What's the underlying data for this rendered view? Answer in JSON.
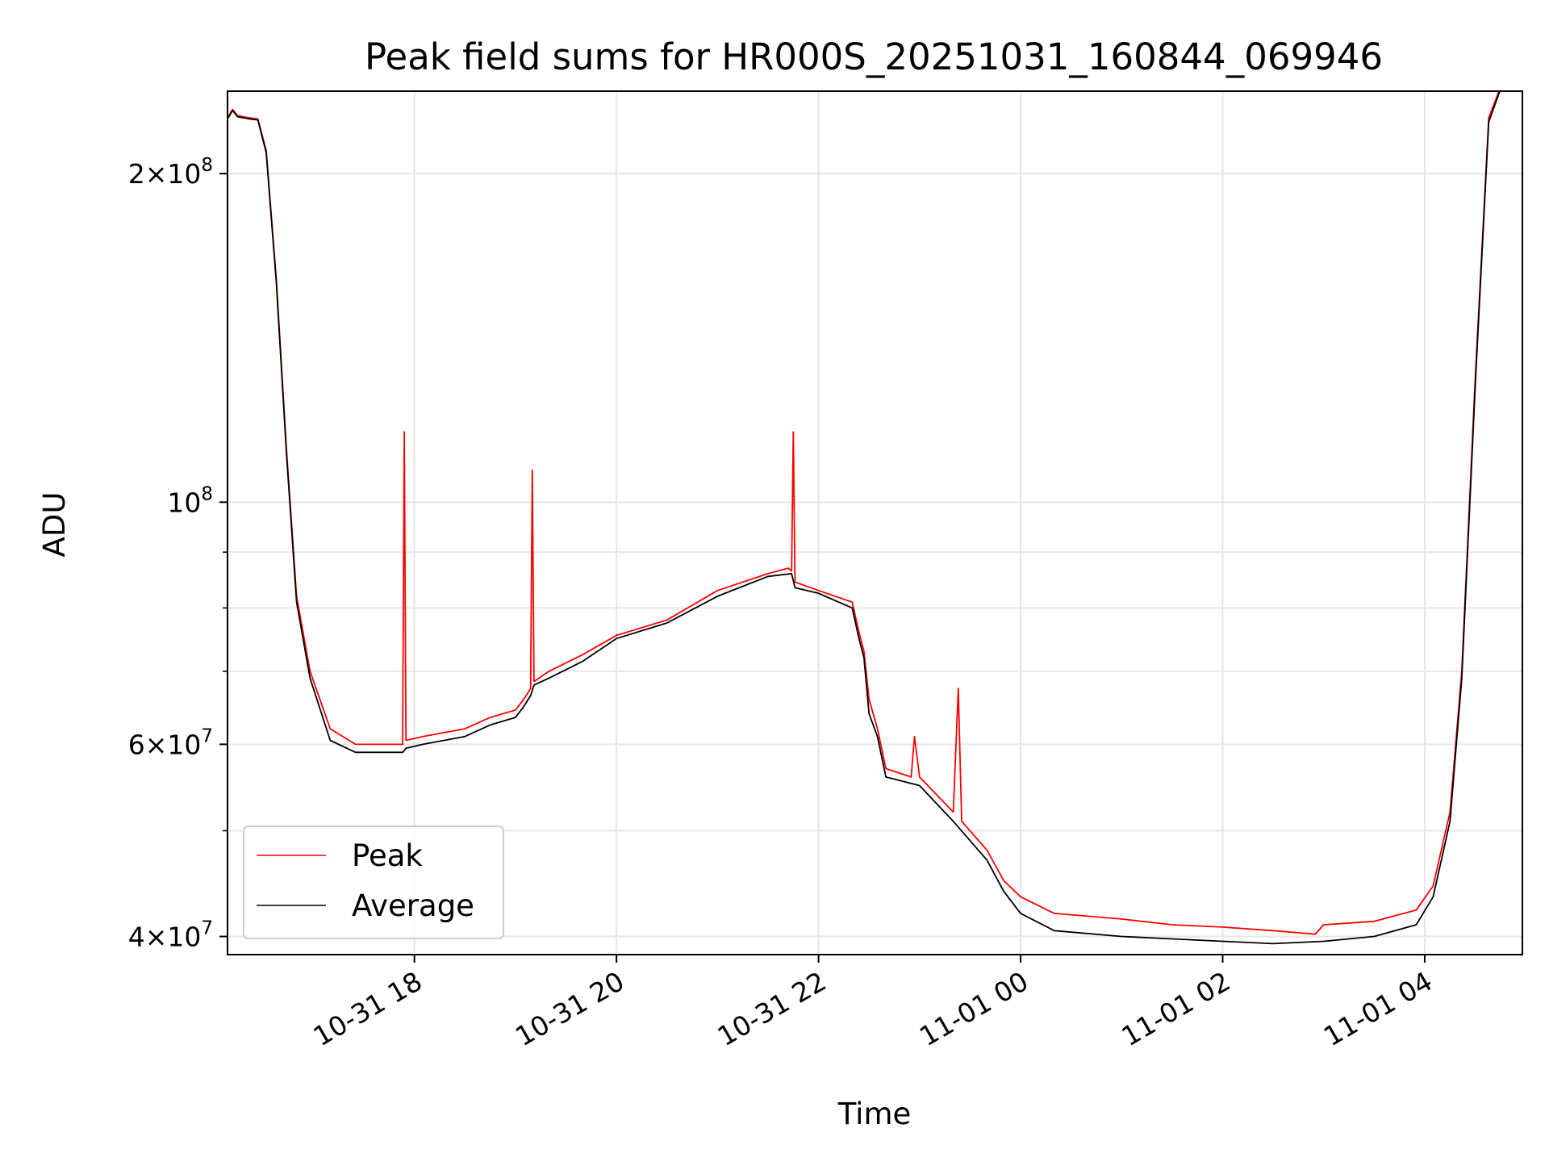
{
  "chart_data": {
    "type": "line",
    "title": "Peak field sums for HR000S_20251031_160844_069946",
    "xlabel": "Time",
    "ylabel": "ADU",
    "x_axis": {
      "type": "time",
      "range": [
        "2025-10-31 16:09",
        "2025-11-01 04:58"
      ],
      "ticks": [
        "10-31 18",
        "10-31 20",
        "10-31 22",
        "11-01 00",
        "11-01 02",
        "11-01 04"
      ],
      "tick_values": [
        "2025-10-31 18:00",
        "2025-10-31 20:00",
        "2025-10-31 22:00",
        "2025-11-01 00:00",
        "2025-11-01 02:00",
        "2025-11-01 04:00"
      ]
    },
    "y_axis": {
      "scale": "log",
      "range": [
        38500000,
        238000000
      ],
      "major_ticks": [
        {
          "value": 40000000,
          "mantissa": "4",
          "exponent": "7"
        },
        {
          "value": 60000000,
          "mantissa": "6",
          "exponent": "7"
        },
        {
          "value": 100000000,
          "mantissa": "",
          "exponent": "8"
        },
        {
          "value": 200000000,
          "mantissa": "2",
          "exponent": "8"
        }
      ],
      "minor_gridlines": [
        50000000,
        70000000,
        80000000,
        90000000
      ]
    },
    "grid": true,
    "legend": {
      "position": "lower-left",
      "entries": [
        {
          "name": "Peak",
          "color": "#ff0000"
        },
        {
          "name": "Average",
          "color": "#000000"
        }
      ]
    },
    "series": [
      {
        "name": "Peak",
        "color": "#ff0000",
        "points": [
          [
            "2025-10-31 16:09",
            225000000
          ],
          [
            "2025-10-31 16:12",
            229000000
          ],
          [
            "2025-10-31 16:15",
            226000000
          ],
          [
            "2025-10-31 16:22",
            225000000
          ],
          [
            "2025-10-31 16:27",
            224500000
          ],
          [
            "2025-10-31 16:32",
            210000000
          ],
          [
            "2025-10-31 16:38",
            160000000
          ],
          [
            "2025-10-31 16:44",
            112000000
          ],
          [
            "2025-10-31 16:50",
            82000000
          ],
          [
            "2025-10-31 16:58",
            70000000
          ],
          [
            "2025-10-31 17:10",
            62000000
          ],
          [
            "2025-10-31 17:25",
            60000000
          ],
          [
            "2025-10-31 17:53",
            60000000
          ],
          [
            "2025-10-31 17:54",
            116000000
          ],
          [
            "2025-10-31 17:55",
            60500000
          ],
          [
            "2025-10-31 18:05",
            61000000
          ],
          [
            "2025-10-31 18:30",
            62000000
          ],
          [
            "2025-10-31 18:45",
            63500000
          ],
          [
            "2025-10-31 19:00",
            64500000
          ],
          [
            "2025-10-31 19:05",
            66000000
          ],
          [
            "2025-10-31 19:09",
            67500000
          ],
          [
            "2025-10-31 19:10",
            107000000
          ],
          [
            "2025-10-31 19:11",
            68500000
          ],
          [
            "2025-10-31 19:20",
            70000000
          ],
          [
            "2025-10-31 19:40",
            72500000
          ],
          [
            "2025-10-31 20:00",
            75500000
          ],
          [
            "2025-10-31 20:30",
            78000000
          ],
          [
            "2025-10-31 21:00",
            83000000
          ],
          [
            "2025-10-31 21:30",
            86000000
          ],
          [
            "2025-10-31 21:42",
            87000000
          ],
          [
            "2025-10-31 21:44",
            86500000
          ],
          [
            "2025-10-31 21:45",
            116000000
          ],
          [
            "2025-10-31 21:46",
            84500000
          ],
          [
            "2025-10-31 22:00",
            83000000
          ],
          [
            "2025-10-31 22:20",
            81000000
          ],
          [
            "2025-10-31 22:24",
            76000000
          ],
          [
            "2025-10-31 22:27",
            73000000
          ],
          [
            "2025-10-31 22:30",
            66000000
          ],
          [
            "2025-10-31 22:35",
            62000000
          ],
          [
            "2025-10-31 22:40",
            57000000
          ],
          [
            "2025-10-31 22:55",
            56000000
          ],
          [
            "2025-10-31 22:57",
            61000000
          ],
          [
            "2025-10-31 23:00",
            56000000
          ],
          [
            "2025-10-31 23:20",
            52000000
          ],
          [
            "2025-10-31 23:23",
            67500000
          ],
          [
            "2025-10-31 23:25",
            51000000
          ],
          [
            "2025-10-31 23:40",
            48000000
          ],
          [
            "2025-10-31 23:50",
            45000000
          ],
          [
            "2025-11-01 00:00",
            43500000
          ],
          [
            "2025-11-01 00:20",
            42000000
          ],
          [
            "2025-11-01 01:00",
            41500000
          ],
          [
            "2025-11-01 01:30",
            41000000
          ],
          [
            "2025-11-01 02:00",
            40800000
          ],
          [
            "2025-11-01 02:30",
            40500000
          ],
          [
            "2025-11-01 02:55",
            40200000
          ],
          [
            "2025-11-01 03:00",
            41000000
          ],
          [
            "2025-11-01 03:30",
            41300000
          ],
          [
            "2025-11-01 03:55",
            42300000
          ],
          [
            "2025-11-01 04:05",
            44500000
          ],
          [
            "2025-11-01 04:15",
            52000000
          ],
          [
            "2025-11-01 04:22",
            70000000
          ],
          [
            "2025-11-01 04:30",
            130000000
          ],
          [
            "2025-11-01 04:38",
            225000000
          ],
          [
            "2025-11-01 04:45",
            240000000
          ]
        ]
      },
      {
        "name": "Average",
        "color": "#000000",
        "points": [
          [
            "2025-10-31 16:09",
            224500000
          ],
          [
            "2025-10-31 16:12",
            228500000
          ],
          [
            "2025-10-31 16:15",
            225500000
          ],
          [
            "2025-10-31 16:22",
            224500000
          ],
          [
            "2025-10-31 16:27",
            224000000
          ],
          [
            "2025-10-31 16:32",
            209000000
          ],
          [
            "2025-10-31 16:38",
            159000000
          ],
          [
            "2025-10-31 16:44",
            111000000
          ],
          [
            "2025-10-31 16:50",
            81000000
          ],
          [
            "2025-10-31 16:58",
            69000000
          ],
          [
            "2025-10-31 17:10",
            60500000
          ],
          [
            "2025-10-31 17:25",
            59000000
          ],
          [
            "2025-10-31 17:53",
            59000000
          ],
          [
            "2025-10-31 17:55",
            59500000
          ],
          [
            "2025-10-31 18:05",
            60000000
          ],
          [
            "2025-10-31 18:30",
            61000000
          ],
          [
            "2025-10-31 18:45",
            62500000
          ],
          [
            "2025-10-31 19:00",
            63500000
          ],
          [
            "2025-10-31 19:05",
            65000000
          ],
          [
            "2025-10-31 19:09",
            66500000
          ],
          [
            "2025-10-31 19:11",
            68000000
          ],
          [
            "2025-10-31 19:20",
            69000000
          ],
          [
            "2025-10-31 19:40",
            71500000
          ],
          [
            "2025-10-31 20:00",
            75000000
          ],
          [
            "2025-10-31 20:30",
            77500000
          ],
          [
            "2025-10-31 21:00",
            82000000
          ],
          [
            "2025-10-31 21:30",
            85500000
          ],
          [
            "2025-10-31 21:44",
            86000000
          ],
          [
            "2025-10-31 21:46",
            83500000
          ],
          [
            "2025-10-31 22:00",
            82500000
          ],
          [
            "2025-10-31 22:20",
            80000000
          ],
          [
            "2025-10-31 22:24",
            75000000
          ],
          [
            "2025-10-31 22:27",
            72000000
          ],
          [
            "2025-10-31 22:30",
            64000000
          ],
          [
            "2025-10-31 22:35",
            61000000
          ],
          [
            "2025-10-31 22:40",
            56000000
          ],
          [
            "2025-10-31 23:00",
            55000000
          ],
          [
            "2025-10-31 23:20",
            51000000
          ],
          [
            "2025-10-31 23:40",
            47000000
          ],
          [
            "2025-10-31 23:50",
            44000000
          ],
          [
            "2025-11-01 00:00",
            42000000
          ],
          [
            "2025-11-01 00:20",
            40500000
          ],
          [
            "2025-11-01 01:00",
            40000000
          ],
          [
            "2025-11-01 01:30",
            39800000
          ],
          [
            "2025-11-01 02:00",
            39600000
          ],
          [
            "2025-11-01 02:30",
            39400000
          ],
          [
            "2025-11-01 03:00",
            39600000
          ],
          [
            "2025-11-01 03:30",
            40000000
          ],
          [
            "2025-11-01 03:55",
            41000000
          ],
          [
            "2025-11-01 04:05",
            43500000
          ],
          [
            "2025-11-01 04:15",
            51000000
          ],
          [
            "2025-11-01 04:22",
            69000000
          ],
          [
            "2025-11-01 04:30",
            128000000
          ],
          [
            "2025-11-01 04:38",
            223000000
          ],
          [
            "2025-11-01 04:45",
            239000000
          ]
        ]
      }
    ]
  }
}
